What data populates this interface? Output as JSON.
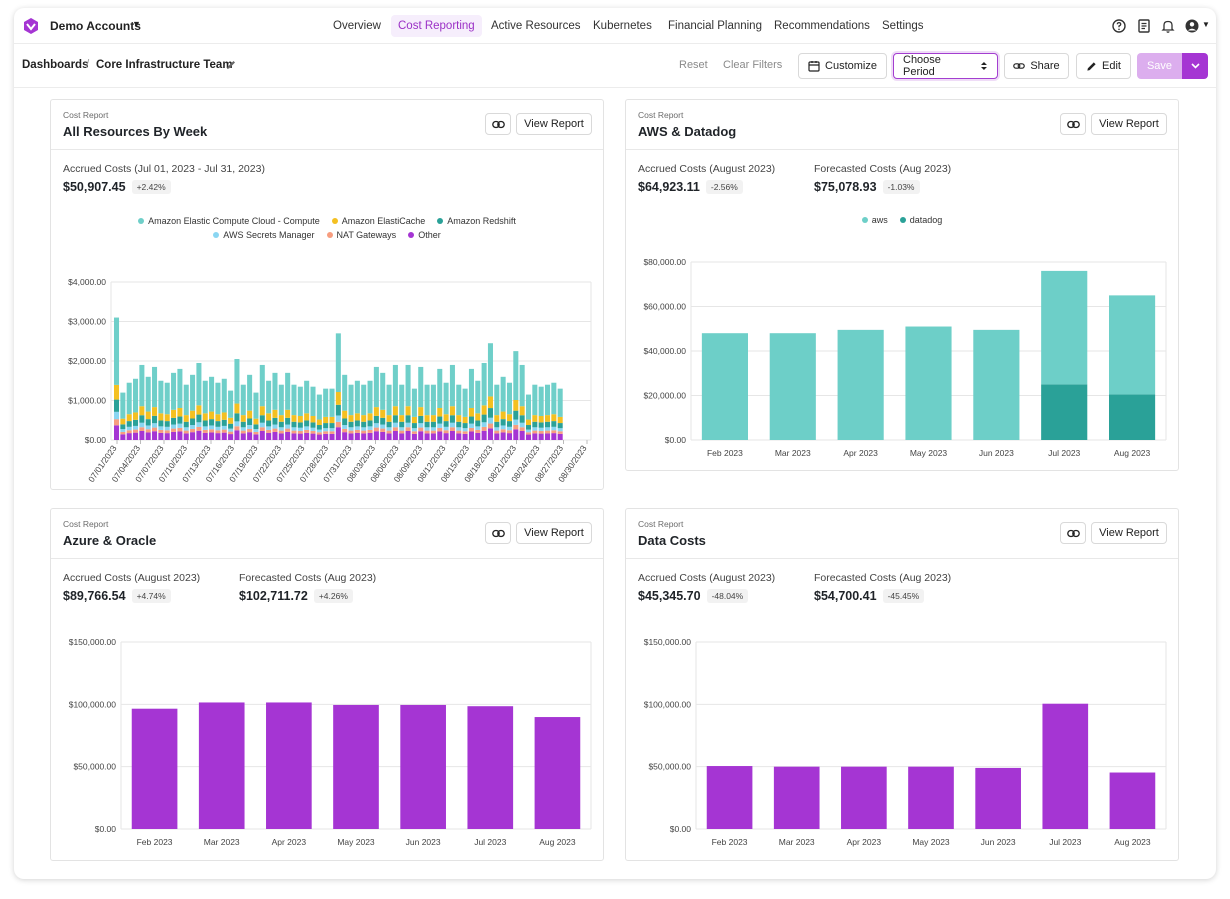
{
  "app": {
    "account": "Demo Accounts",
    "nav": [
      "Overview",
      "Cost Reporting",
      "Active Resources",
      "Kubernetes",
      "Financial Planning",
      "Recommendations",
      "Settings"
    ],
    "active_nav": "Cost Reporting",
    "icons": [
      "help-icon",
      "docs-icon",
      "bell-icon",
      "user-icon"
    ],
    "accent": "#a535d3"
  },
  "breadcrumb": {
    "root": "Dashboards",
    "current": "Core Infrastructure Team"
  },
  "toolbar": {
    "reset": "Reset",
    "clear": "Clear Filters",
    "customize": "Customize",
    "period": "Choose Period",
    "share": "Share",
    "edit": "Edit",
    "save": "Save"
  },
  "cards": [
    {
      "kicker": "Cost Report",
      "title": "All Resources By Week",
      "view": "View Report",
      "metrics": [
        {
          "label": "Accrued Costs (Jul 01, 2023 - Jul 31, 2023)",
          "value": "$50,907.45",
          "change": "+2.42%"
        }
      ]
    },
    {
      "kicker": "Cost Report",
      "title": "AWS & Datadog",
      "view": "View Report",
      "metrics": [
        {
          "label": "Accrued Costs (August 2023)",
          "value": "$64,923.11",
          "change": "-2.56%"
        },
        {
          "label": "Forecasted Costs (Aug 2023)",
          "value": "$75,078.93",
          "change": "-1.03%"
        }
      ]
    },
    {
      "kicker": "Cost Report",
      "title": "Azure & Oracle",
      "view": "View Report",
      "metrics": [
        {
          "label": "Accrued Costs (August 2023)",
          "value": "$89,766.54",
          "change": "+4.74%"
        },
        {
          "label": "Forecasted Costs (Aug 2023)",
          "value": "$102,711.72",
          "change": "+4.26%"
        }
      ]
    },
    {
      "kicker": "Cost Report",
      "title": "Data Costs",
      "view": "View Report",
      "metrics": [
        {
          "label": "Accrued Costs (August 2023)",
          "value": "$45,345.70",
          "change": "-48.04%"
        },
        {
          "label": "Forecasted Costs (Aug 2023)",
          "value": "$54,700.41",
          "change": "-45.45%"
        }
      ]
    }
  ],
  "chart_data": [
    {
      "type": "bar",
      "stacked": true,
      "ylim": [
        0,
        4000
      ],
      "yticks": [
        0,
        1000,
        2000,
        3000,
        4000
      ],
      "ytick_labels": [
        "$0.00",
        "$1,000.00",
        "$2,000.00",
        "$3,000.00",
        "$4,000.00"
      ],
      "xtick_labels": [
        "07/01/2023",
        "07/04/2023",
        "07/07/2023",
        "07/10/2023",
        "07/13/2023",
        "07/16/2023",
        "07/19/2023",
        "07/22/2023",
        "07/25/2023",
        "07/28/2023",
        "07/31/2023",
        "08/03/2023",
        "08/06/2023",
        "08/09/2023",
        "08/12/2023",
        "08/15/2023",
        "08/18/2023",
        "08/21/2023",
        "08/24/2023",
        "08/27/2023",
        "08/30/2023"
      ],
      "legend_position": "top",
      "series": [
        {
          "name": "Amazon Elastic Compute Cloud - Compute",
          "color": "#6fcfc9"
        },
        {
          "name": "Amazon ElastiCache",
          "color": "#f4c021"
        },
        {
          "name": "Amazon Redshift",
          "color": "#2aa198"
        },
        {
          "name": "AWS Secrets Manager",
          "color": "#8ad6f2"
        },
        {
          "name": "NAT Gateways",
          "color": "#f79d7f"
        },
        {
          "name": "Other",
          "color": "#a535d3"
        }
      ],
      "totals": [
        3100,
        1200,
        1450,
        1550,
        1900,
        1600,
        1850,
        1500,
        1450,
        1700,
        1800,
        1400,
        1650,
        1950,
        1500,
        1600,
        1450,
        1550,
        1250,
        2050,
        1400,
        1650,
        1200,
        1900,
        1500,
        1700,
        1400,
        1700,
        1400,
        1350,
        1500,
        1350,
        1150,
        1300,
        1300,
        2700,
        1650,
        1400,
        1500,
        1400,
        1500,
        1850,
        1700,
        1400,
        1900,
        1400,
        1900,
        1300,
        1850,
        1400,
        1400,
        1800,
        1450,
        1900,
        1400,
        1300,
        1800,
        1500,
        1950,
        2450,
        1400,
        1600,
        1450,
        2250,
        1900,
        1150,
        1400,
        1350,
        1400,
        1450,
        1300
      ]
    },
    {
      "type": "bar",
      "stacked": true,
      "categories": [
        "Feb 2023",
        "Mar 2023",
        "Apr 2023",
        "May 2023",
        "Jun 2023",
        "Jul 2023",
        "Aug 2023"
      ],
      "ylim": [
        0,
        80000
      ],
      "yticks": [
        0,
        20000,
        40000,
        60000,
        80000
      ],
      "ytick_labels": [
        "$0.00",
        "$20,000.00",
        "$40,000.00",
        "$60,000.00",
        "$80,000.00"
      ],
      "legend_position": "top",
      "series": [
        {
          "name": "datadog",
          "color": "#2aa198",
          "values": [
            0,
            0,
            0,
            0,
            0,
            25000,
            20500
          ]
        },
        {
          "name": "aws",
          "color": "#6dcfc8",
          "values": [
            48000,
            48000,
            49500,
            51000,
            49500,
            51000,
            44500
          ]
        }
      ]
    },
    {
      "type": "bar",
      "categories": [
        "Feb 2023",
        "Mar 2023",
        "Apr 2023",
        "May 2023",
        "Jun 2023",
        "Jul 2023",
        "Aug 2023"
      ],
      "ylim": [
        0,
        150000
      ],
      "yticks": [
        0,
        50000,
        100000,
        150000
      ],
      "ytick_labels": [
        "$0.00",
        "$50,000.00",
        "$100,000.00",
        "$150,000.00"
      ],
      "series": [
        {
          "color": "#a535d3",
          "values": [
            96500,
            101500,
            101500,
            99500,
            99500,
            98500,
            89800
          ]
        }
      ]
    },
    {
      "type": "bar",
      "categories": [
        "Feb 2023",
        "Mar 2023",
        "Apr 2023",
        "May 2023",
        "Jun 2023",
        "Jul 2023",
        "Aug 2023"
      ],
      "ylim": [
        0,
        150000
      ],
      "yticks": [
        0,
        50000,
        100000,
        150000
      ],
      "ytick_labels": [
        "$0.00",
        "$50,000.00",
        "$100,000.00",
        "$150,000.00"
      ],
      "series": [
        {
          "color": "#a535d3",
          "values": [
            50500,
            50000,
            50000,
            50000,
            49000,
            100500,
            45300
          ]
        }
      ]
    }
  ]
}
